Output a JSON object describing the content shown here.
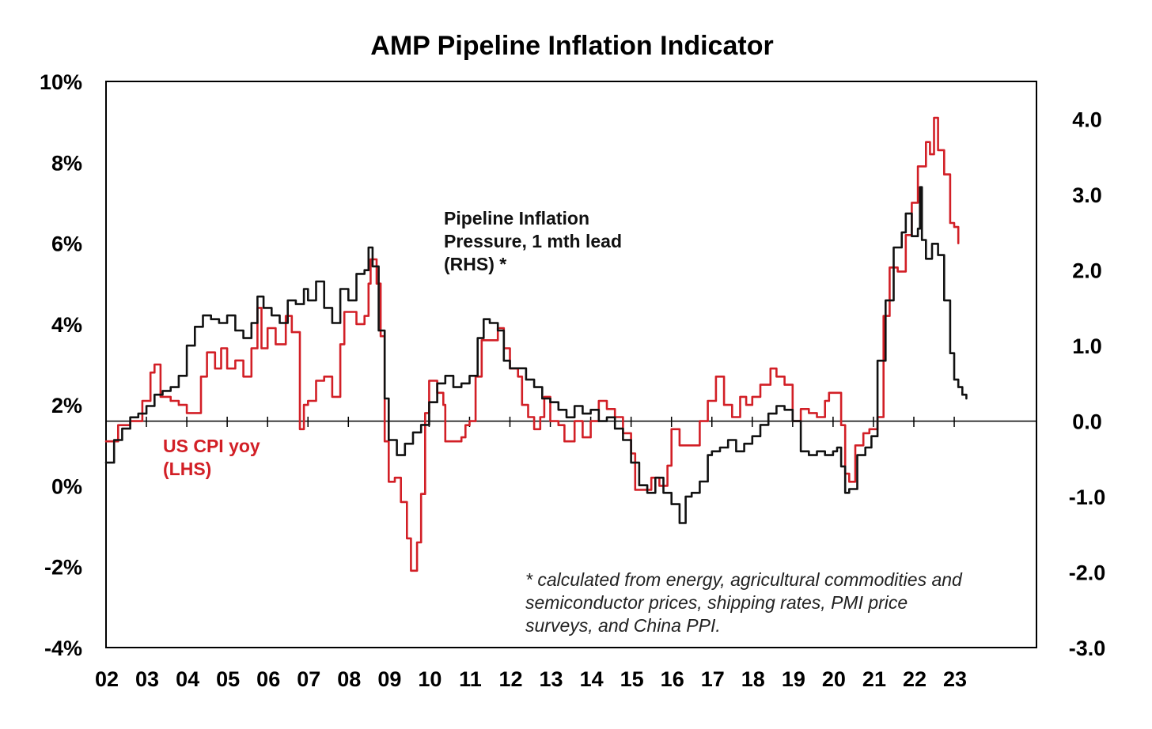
{
  "chart_data": {
    "type": "line",
    "title": "AMP Pipeline Inflation Indicator",
    "x_ticks": [
      "02",
      "03",
      "04",
      "05",
      "06",
      "07",
      "08",
      "09",
      "10",
      "11",
      "12",
      "13",
      "14",
      "15",
      "16",
      "17",
      "18",
      "19",
      "20",
      "21",
      "22",
      "23"
    ],
    "x_range": [
      2002.0,
      2023.3
    ],
    "y_left": {
      "ticks": [
        "10%",
        "8%",
        "6%",
        "4%",
        "2%",
        "0%",
        "-2%",
        "-4%"
      ],
      "range": [
        -4,
        10
      ],
      "unit": "%"
    },
    "y_right": {
      "ticks": [
        "4.0",
        "3.0",
        "2.0",
        "1.0",
        "0.0",
        "-1.0",
        "-2.0",
        "-3.0"
      ],
      "range": [
        -3,
        4.5
      ]
    },
    "zero_line": "right axis 0.0",
    "grid": false,
    "annotations": {
      "pipeline_label": [
        "Pipeline Inflation",
        "Pressure, 1 mth lead",
        "(RHS) *"
      ],
      "cpi_label": [
        "US CPI yoy",
        "(LHS)"
      ],
      "footnote": [
        "* calculated from energy, agricultural commodities and",
        "semiconductor prices, shipping rates, PMI price",
        "surveys, and China PPI."
      ]
    },
    "series": [
      {
        "name": "US CPI yoy (LHS)",
        "axis": "left",
        "color": "#d21f26",
        "points": [
          [
            2002.0,
            1.1
          ],
          [
            2002.3,
            1.5
          ],
          [
            2002.6,
            1.6
          ],
          [
            2002.9,
            2.1
          ],
          [
            2003.1,
            2.8
          ],
          [
            2003.2,
            3.0
          ],
          [
            2003.35,
            2.2
          ],
          [
            2003.6,
            2.1
          ],
          [
            2003.8,
            2.0
          ],
          [
            2004.0,
            1.8
          ],
          [
            2004.2,
            1.8
          ],
          [
            2004.35,
            2.7
          ],
          [
            2004.5,
            3.3
          ],
          [
            2004.7,
            2.9
          ],
          [
            2004.85,
            3.4
          ],
          [
            2005.0,
            2.9
          ],
          [
            2005.2,
            3.1
          ],
          [
            2005.4,
            2.7
          ],
          [
            2005.6,
            3.4
          ],
          [
            2005.75,
            4.4
          ],
          [
            2005.85,
            3.4
          ],
          [
            2006.0,
            3.9
          ],
          [
            2006.2,
            3.5
          ],
          [
            2006.45,
            4.2
          ],
          [
            2006.6,
            3.8
          ],
          [
            2006.8,
            1.4
          ],
          [
            2006.9,
            2.0
          ],
          [
            2007.0,
            2.1
          ],
          [
            2007.2,
            2.6
          ],
          [
            2007.4,
            2.7
          ],
          [
            2007.6,
            2.2
          ],
          [
            2007.8,
            3.5
          ],
          [
            2007.9,
            4.3
          ],
          [
            2008.2,
            4.0
          ],
          [
            2008.4,
            4.2
          ],
          [
            2008.5,
            5.0
          ],
          [
            2008.55,
            5.6
          ],
          [
            2008.7,
            5.0
          ],
          [
            2008.8,
            3.7
          ],
          [
            2008.9,
            1.1
          ],
          [
            2009.0,
            0.1
          ],
          [
            2009.15,
            0.2
          ],
          [
            2009.3,
            -0.4
          ],
          [
            2009.45,
            -1.3
          ],
          [
            2009.55,
            -2.1
          ],
          [
            2009.7,
            -1.4
          ],
          [
            2009.8,
            -0.2
          ],
          [
            2009.9,
            1.8
          ],
          [
            2010.0,
            2.6
          ],
          [
            2010.2,
            2.3
          ],
          [
            2010.35,
            2.0
          ],
          [
            2010.4,
            1.1
          ],
          [
            2010.6,
            1.1
          ],
          [
            2010.8,
            1.2
          ],
          [
            2010.9,
            1.5
          ],
          [
            2011.0,
            1.6
          ],
          [
            2011.15,
            2.7
          ],
          [
            2011.3,
            3.6
          ],
          [
            2011.5,
            3.6
          ],
          [
            2011.7,
            3.9
          ],
          [
            2011.85,
            3.4
          ],
          [
            2012.0,
            2.9
          ],
          [
            2012.2,
            2.7
          ],
          [
            2012.3,
            2.0
          ],
          [
            2012.45,
            1.7
          ],
          [
            2012.6,
            1.4
          ],
          [
            2012.75,
            1.7
          ],
          [
            2012.85,
            2.2
          ],
          [
            2013.0,
            1.6
          ],
          [
            2013.2,
            1.5
          ],
          [
            2013.35,
            1.1
          ],
          [
            2013.6,
            1.6
          ],
          [
            2013.8,
            1.2
          ],
          [
            2014.0,
            1.6
          ],
          [
            2014.2,
            2.1
          ],
          [
            2014.4,
            1.9
          ],
          [
            2014.6,
            1.7
          ],
          [
            2014.8,
            1.3
          ],
          [
            2015.0,
            0.8
          ],
          [
            2015.1,
            -0.1
          ],
          [
            2015.3,
            -0.1
          ],
          [
            2015.5,
            0.2
          ],
          [
            2015.7,
            0.0
          ],
          [
            2015.9,
            0.5
          ],
          [
            2016.0,
            1.4
          ],
          [
            2016.2,
            1.0
          ],
          [
            2016.5,
            1.0
          ],
          [
            2016.7,
            1.6
          ],
          [
            2016.9,
            2.1
          ],
          [
            2017.1,
            2.7
          ],
          [
            2017.3,
            2.0
          ],
          [
            2017.5,
            1.7
          ],
          [
            2017.7,
            2.2
          ],
          [
            2017.85,
            2.0
          ],
          [
            2018.0,
            2.2
          ],
          [
            2018.2,
            2.5
          ],
          [
            2018.45,
            2.9
          ],
          [
            2018.6,
            2.7
          ],
          [
            2018.8,
            2.5
          ],
          [
            2019.0,
            1.6
          ],
          [
            2019.2,
            1.9
          ],
          [
            2019.4,
            1.8
          ],
          [
            2019.6,
            1.7
          ],
          [
            2019.8,
            2.1
          ],
          [
            2019.9,
            2.3
          ],
          [
            2020.05,
            2.3
          ],
          [
            2020.2,
            1.5
          ],
          [
            2020.3,
            0.3
          ],
          [
            2020.4,
            0.1
          ],
          [
            2020.55,
            1.0
          ],
          [
            2020.75,
            1.3
          ],
          [
            2020.9,
            1.4
          ],
          [
            2021.1,
            1.7
          ],
          [
            2021.25,
            4.2
          ],
          [
            2021.4,
            5.4
          ],
          [
            2021.6,
            5.3
          ],
          [
            2021.8,
            6.2
          ],
          [
            2021.95,
            7.0
          ],
          [
            2022.1,
            7.9
          ],
          [
            2022.3,
            8.5
          ],
          [
            2022.4,
            8.2
          ],
          [
            2022.5,
            9.1
          ],
          [
            2022.6,
            8.3
          ],
          [
            2022.75,
            7.7
          ],
          [
            2022.9,
            6.5
          ],
          [
            2023.0,
            6.4
          ],
          [
            2023.1,
            6.0
          ]
        ]
      },
      {
        "name": "Pipeline Inflation Pressure, 1 mth lead (RHS) *",
        "axis": "right",
        "color": "#111111",
        "points": [
          [
            2002.0,
            -0.55
          ],
          [
            2002.2,
            -0.25
          ],
          [
            2002.4,
            -0.1
          ],
          [
            2002.6,
            0.05
          ],
          [
            2002.8,
            0.1
          ],
          [
            2003.0,
            0.2
          ],
          [
            2003.2,
            0.35
          ],
          [
            2003.4,
            0.4
          ],
          [
            2003.6,
            0.45
          ],
          [
            2003.8,
            0.6
          ],
          [
            2004.0,
            1.0
          ],
          [
            2004.2,
            1.25
          ],
          [
            2004.4,
            1.4
          ],
          [
            2004.6,
            1.35
          ],
          [
            2004.8,
            1.3
          ],
          [
            2005.0,
            1.4
          ],
          [
            2005.2,
            1.2
          ],
          [
            2005.4,
            1.1
          ],
          [
            2005.6,
            1.3
          ],
          [
            2005.75,
            1.65
          ],
          [
            2005.9,
            1.5
          ],
          [
            2006.1,
            1.4
          ],
          [
            2006.3,
            1.3
          ],
          [
            2006.5,
            1.6
          ],
          [
            2006.7,
            1.55
          ],
          [
            2006.9,
            1.75
          ],
          [
            2007.0,
            1.6
          ],
          [
            2007.2,
            1.85
          ],
          [
            2007.4,
            1.5
          ],
          [
            2007.6,
            1.3
          ],
          [
            2007.8,
            1.75
          ],
          [
            2008.0,
            1.6
          ],
          [
            2008.2,
            1.95
          ],
          [
            2008.4,
            2.0
          ],
          [
            2008.5,
            2.3
          ],
          [
            2008.6,
            2.05
          ],
          [
            2008.75,
            1.2
          ],
          [
            2008.9,
            0.3
          ],
          [
            2009.0,
            -0.25
          ],
          [
            2009.2,
            -0.45
          ],
          [
            2009.4,
            -0.3
          ],
          [
            2009.6,
            -0.15
          ],
          [
            2009.8,
            -0.05
          ],
          [
            2010.0,
            0.25
          ],
          [
            2010.2,
            0.5
          ],
          [
            2010.4,
            0.6
          ],
          [
            2010.6,
            0.45
          ],
          [
            2010.8,
            0.5
          ],
          [
            2011.0,
            0.6
          ],
          [
            2011.2,
            1.1
          ],
          [
            2011.35,
            1.35
          ],
          [
            2011.5,
            1.3
          ],
          [
            2011.7,
            1.2
          ],
          [
            2011.85,
            0.8
          ],
          [
            2012.0,
            0.7
          ],
          [
            2012.2,
            0.7
          ],
          [
            2012.4,
            0.55
          ],
          [
            2012.6,
            0.45
          ],
          [
            2012.8,
            0.3
          ],
          [
            2013.0,
            0.25
          ],
          [
            2013.2,
            0.15
          ],
          [
            2013.4,
            0.05
          ],
          [
            2013.6,
            0.2
          ],
          [
            2013.8,
            0.1
          ],
          [
            2014.0,
            0.15
          ],
          [
            2014.2,
            0.0
          ],
          [
            2014.4,
            0.05
          ],
          [
            2014.6,
            -0.1
          ],
          [
            2014.8,
            -0.25
          ],
          [
            2015.0,
            -0.55
          ],
          [
            2015.2,
            -0.85
          ],
          [
            2015.4,
            -0.95
          ],
          [
            2015.6,
            -0.75
          ],
          [
            2015.8,
            -0.95
          ],
          [
            2016.0,
            -1.1
          ],
          [
            2016.2,
            -1.35
          ],
          [
            2016.35,
            -1.0
          ],
          [
            2016.5,
            -0.95
          ],
          [
            2016.7,
            -0.8
          ],
          [
            2016.9,
            -0.45
          ],
          [
            2017.0,
            -0.4
          ],
          [
            2017.2,
            -0.35
          ],
          [
            2017.4,
            -0.25
          ],
          [
            2017.6,
            -0.4
          ],
          [
            2017.8,
            -0.3
          ],
          [
            2018.0,
            -0.2
          ],
          [
            2018.2,
            -0.05
          ],
          [
            2018.4,
            0.1
          ],
          [
            2018.6,
            0.2
          ],
          [
            2018.8,
            0.15
          ],
          [
            2019.0,
            0.0
          ],
          [
            2019.2,
            -0.4
          ],
          [
            2019.4,
            -0.45
          ],
          [
            2019.6,
            -0.4
          ],
          [
            2019.8,
            -0.45
          ],
          [
            2020.0,
            -0.4
          ],
          [
            2020.1,
            -0.35
          ],
          [
            2020.2,
            -0.6
          ],
          [
            2020.3,
            -0.95
          ],
          [
            2020.4,
            -0.9
          ],
          [
            2020.6,
            -0.45
          ],
          [
            2020.8,
            -0.35
          ],
          [
            2020.95,
            -0.2
          ],
          [
            2021.1,
            0.8
          ],
          [
            2021.3,
            1.6
          ],
          [
            2021.5,
            2.3
          ],
          [
            2021.7,
            2.5
          ],
          [
            2021.8,
            2.75
          ],
          [
            2021.95,
            2.45
          ],
          [
            2022.1,
            2.55
          ],
          [
            2022.15,
            3.1
          ],
          [
            2022.2,
            2.4
          ],
          [
            2022.3,
            2.15
          ],
          [
            2022.45,
            2.35
          ],
          [
            2022.6,
            2.2
          ],
          [
            2022.75,
            1.6
          ],
          [
            2022.9,
            0.9
          ],
          [
            2023.0,
            0.55
          ],
          [
            2023.1,
            0.45
          ],
          [
            2023.2,
            0.35
          ],
          [
            2023.3,
            0.3
          ]
        ]
      }
    ]
  }
}
